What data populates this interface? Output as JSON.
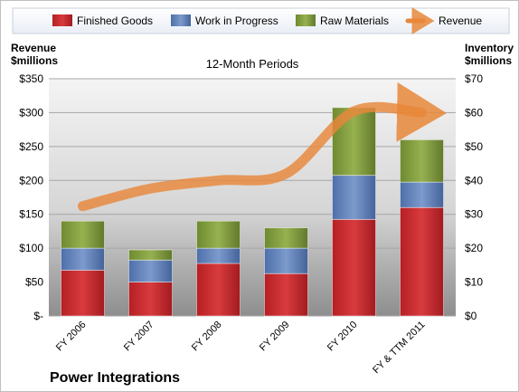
{
  "title": "Power Integrations",
  "chart_data": {
    "type": "bar",
    "subtype": "stacked-bar-with-line",
    "title": "Power Integrations",
    "subtitle": "12-Month Periods",
    "categories": [
      "FY 2006",
      "FY 2007",
      "FY 2008",
      "FY 2009",
      "FY 2010",
      "FY & TTM 2011"
    ],
    "series": [
      {
        "name": "Finished Goods",
        "axis": "right",
        "kind": "bar",
        "color": "#c0282b",
        "values": [
          13.5,
          10,
          15.5,
          12.5,
          28.5,
          32
        ]
      },
      {
        "name": "Work in Progress",
        "axis": "right",
        "kind": "bar",
        "color": "#5b7fba",
        "values": [
          6.5,
          6.5,
          4.5,
          7.5,
          13,
          7.5
        ]
      },
      {
        "name": "Raw Materials",
        "axis": "right",
        "kind": "bar",
        "color": "#7f9a3c",
        "values": [
          8,
          3,
          8,
          6,
          20,
          12.5
        ]
      },
      {
        "name": "Revenue",
        "axis": "left",
        "kind": "line",
        "color": "#e8873a",
        "values": [
          162,
          188,
          200,
          210,
          302,
          300
        ]
      }
    ],
    "left_axis": {
      "label": "Revenue\n$millions",
      "min": 0,
      "max": 350,
      "ticks": [
        0,
        50,
        100,
        150,
        200,
        250,
        300,
        350
      ],
      "tick_labels": [
        "$-",
        "$50",
        "$100",
        "$150",
        "$200",
        "$250",
        "$300",
        "$350"
      ]
    },
    "right_axis": {
      "label": "Inventory\n$millions",
      "min": 0,
      "max": 70,
      "ticks": [
        0,
        10,
        20,
        30,
        40,
        50,
        60,
        70
      ],
      "tick_labels": [
        "$0",
        "$10",
        "$20",
        "$30",
        "$40",
        "$50",
        "$60",
        "$70"
      ]
    },
    "grid": true,
    "legend_position": "top"
  }
}
